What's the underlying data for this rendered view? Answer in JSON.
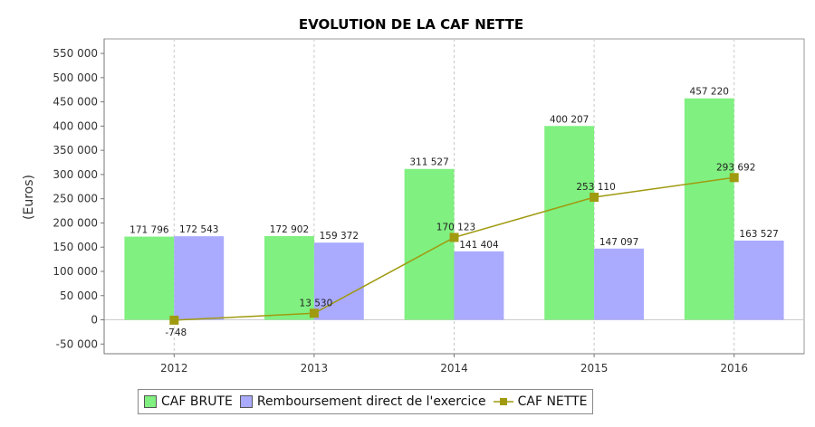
{
  "chart_data": {
    "type": "bar",
    "title": "EVOLUTION DE LA CAF NETTE",
    "ylabel": "(Euros)",
    "xlabel": "",
    "categories": [
      "2012",
      "2013",
      "2014",
      "2015",
      "2016"
    ],
    "ylim": [
      -70000,
      580000
    ],
    "yticks": [
      -50000,
      0,
      50000,
      100000,
      150000,
      200000,
      250000,
      300000,
      350000,
      400000,
      450000,
      500000,
      550000
    ],
    "ytick_labels": [
      "-50 000",
      "0",
      "50 000",
      "100 000",
      "150 000",
      "200 000",
      "250 000",
      "300 000",
      "350 000",
      "400 000",
      "450 000",
      "500 000",
      "550 000"
    ],
    "grid": true,
    "legend_position": "bottom",
    "series": [
      {
        "name": "CAF BRUTE",
        "kind": "bar",
        "color": "#80f080",
        "values": [
          171796,
          172902,
          311527,
          400207,
          457220
        ],
        "labels": [
          "171 796",
          "172 902",
          "311 527",
          "400 207",
          "457 220"
        ]
      },
      {
        "name": "Remboursement direct de l'exercice",
        "kind": "bar",
        "color": "#aaaaff",
        "values": [
          172543,
          159372,
          141404,
          147097,
          163527
        ],
        "labels": [
          "172 543",
          "159 372",
          "141 404",
          "147 097",
          "163 527"
        ]
      },
      {
        "name": "CAF NETTE",
        "kind": "line",
        "color": "#a09a10",
        "values": [
          -748,
          13530,
          170123,
          253110,
          293692
        ],
        "labels": [
          "-748",
          "13 530",
          "170 123",
          "253 110",
          "293 692"
        ]
      }
    ]
  }
}
